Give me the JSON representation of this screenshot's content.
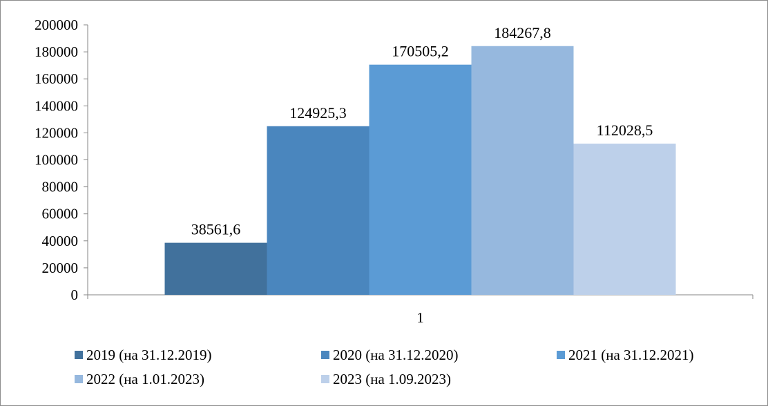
{
  "chart_data": {
    "type": "bar",
    "categories": [
      "1"
    ],
    "series": [
      {
        "name": "2019 (на 31.12.2019)",
        "values": [
          38561.6
        ],
        "label": "38561,6",
        "color": "#41719c"
      },
      {
        "name": "2020 (на 31.12.2020)",
        "values": [
          124925.3
        ],
        "label": "124925,3",
        "color": "#4a86be"
      },
      {
        "name": "2021 (на 31.12.2021)",
        "values": [
          170505.2
        ],
        "label": "170505,2",
        "color": "#5b9bd5"
      },
      {
        "name": "2022 (на 1.01.2023)",
        "values": [
          184267.8
        ],
        "label": "184267,8",
        "color": "#96b8de"
      },
      {
        "name": "2023 (на 1.09.2023)",
        "values": [
          112028.5
        ],
        "label": "112028,5",
        "color": "#bdd0ea"
      }
    ],
    "yticks": [
      "0",
      "20000",
      "40000",
      "60000",
      "80000",
      "100000",
      "120000",
      "140000",
      "160000",
      "180000",
      "200000"
    ],
    "ylim": [
      0,
      200000
    ],
    "grid": false,
    "legend_position": "bottom"
  }
}
